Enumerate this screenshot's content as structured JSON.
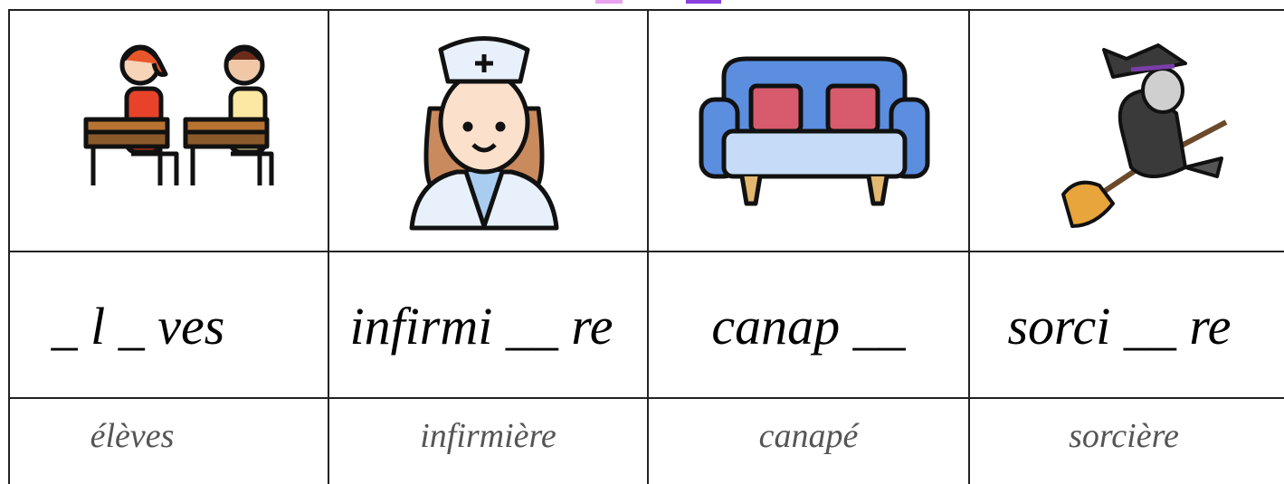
{
  "table": {
    "rows": [
      [
        "_ l _ ves",
        "infirmi __ re",
        "canap __",
        "sorci __ re"
      ],
      [
        "élèves",
        "infirmière",
        "canapé",
        "sorcière"
      ]
    ]
  }
}
